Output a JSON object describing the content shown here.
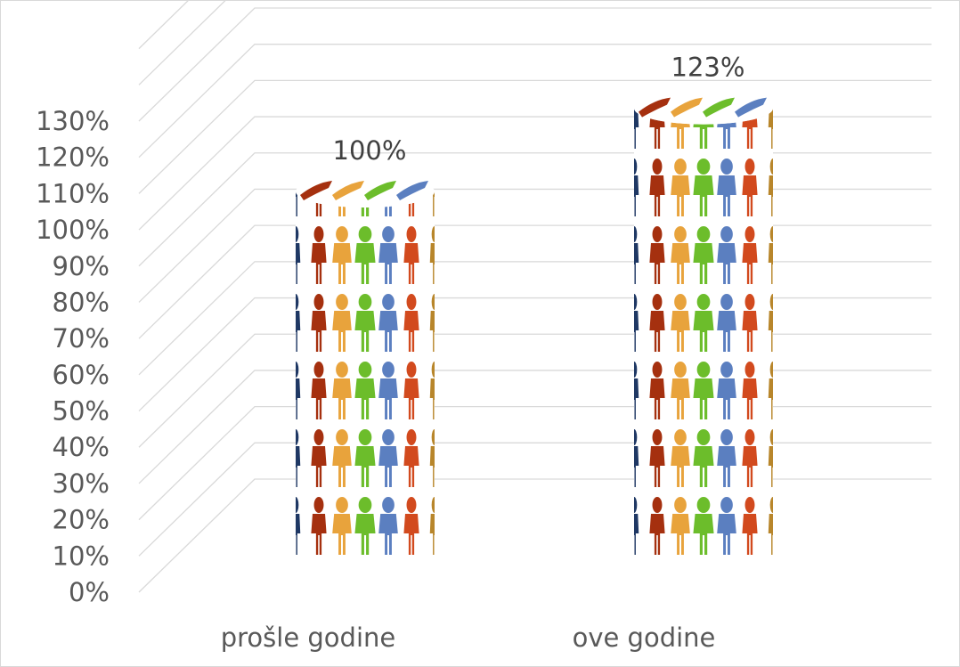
{
  "chart_data": {
    "type": "bar",
    "style": "3d-cylinder-pictogram",
    "categories": [
      "prošle godine",
      "ove godine"
    ],
    "series": [
      {
        "values": [
          100,
          123
        ],
        "labels": [
          "100%",
          "123%"
        ]
      }
    ],
    "yticks": [
      "0%",
      "10%",
      "20%",
      "30%",
      "40%",
      "50%",
      "60%",
      "70%",
      "80%",
      "90%",
      "100%",
      "110%",
      "120%",
      "130%"
    ],
    "ylim": [
      0,
      130
    ],
    "title": "",
    "xlabel": "",
    "ylabel": "",
    "grid": true,
    "legend": "none",
    "colors": {
      "grid": "#d9d9d9",
      "axis_text": "#595959",
      "label_text": "#404040",
      "people": [
        "#1f3864",
        "#a5300f",
        "#e8a33c",
        "#6cbd2b",
        "#5b7fc0",
        "#d24a1e",
        "#b8862b"
      ]
    },
    "fill_icon": "people-icon"
  }
}
